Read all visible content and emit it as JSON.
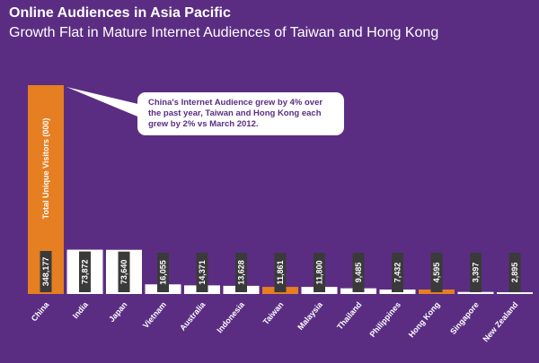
{
  "header": {
    "title": "Online Audiences in Asia Pacific",
    "subtitle": "Growth Flat in Mature Internet Audiences of Taiwan and Hong Kong"
  },
  "callout": {
    "text": "China's Internet Audience grew by 4% over the past year, Taiwan and Hong Kong each grew by 2% vs March 2012."
  },
  "colors": {
    "background": "#5a2d82",
    "bar": "#ffffff",
    "highlight": "#e67e22",
    "label_box": "#3a3a3a"
  },
  "chart_data": {
    "type": "bar",
    "ylabel": "Total Unique Visitors (000)",
    "categories": [
      "China",
      "India",
      "Japan",
      "Vietnam",
      "Australia",
      "Indonesia",
      "Taiwan",
      "Malaysia",
      "Thailand",
      "Philippines",
      "Hong Kong",
      "Singapore",
      "New Zealand"
    ],
    "values": [
      348177,
      73872,
      73640,
      16055,
      14371,
      13628,
      11861,
      11800,
      9485,
      7432,
      4595,
      3397,
      2895
    ],
    "value_labels": [
      "348,177",
      "73,872",
      "73,640",
      "16,055",
      "14,371",
      "13,628",
      "11,861",
      "11,800",
      "9,485",
      "7,432",
      "4,595",
      "3,397",
      "2,895"
    ],
    "highlighted": [
      "China",
      "Taiwan",
      "Hong Kong"
    ],
    "grid": false,
    "legend": "none"
  }
}
